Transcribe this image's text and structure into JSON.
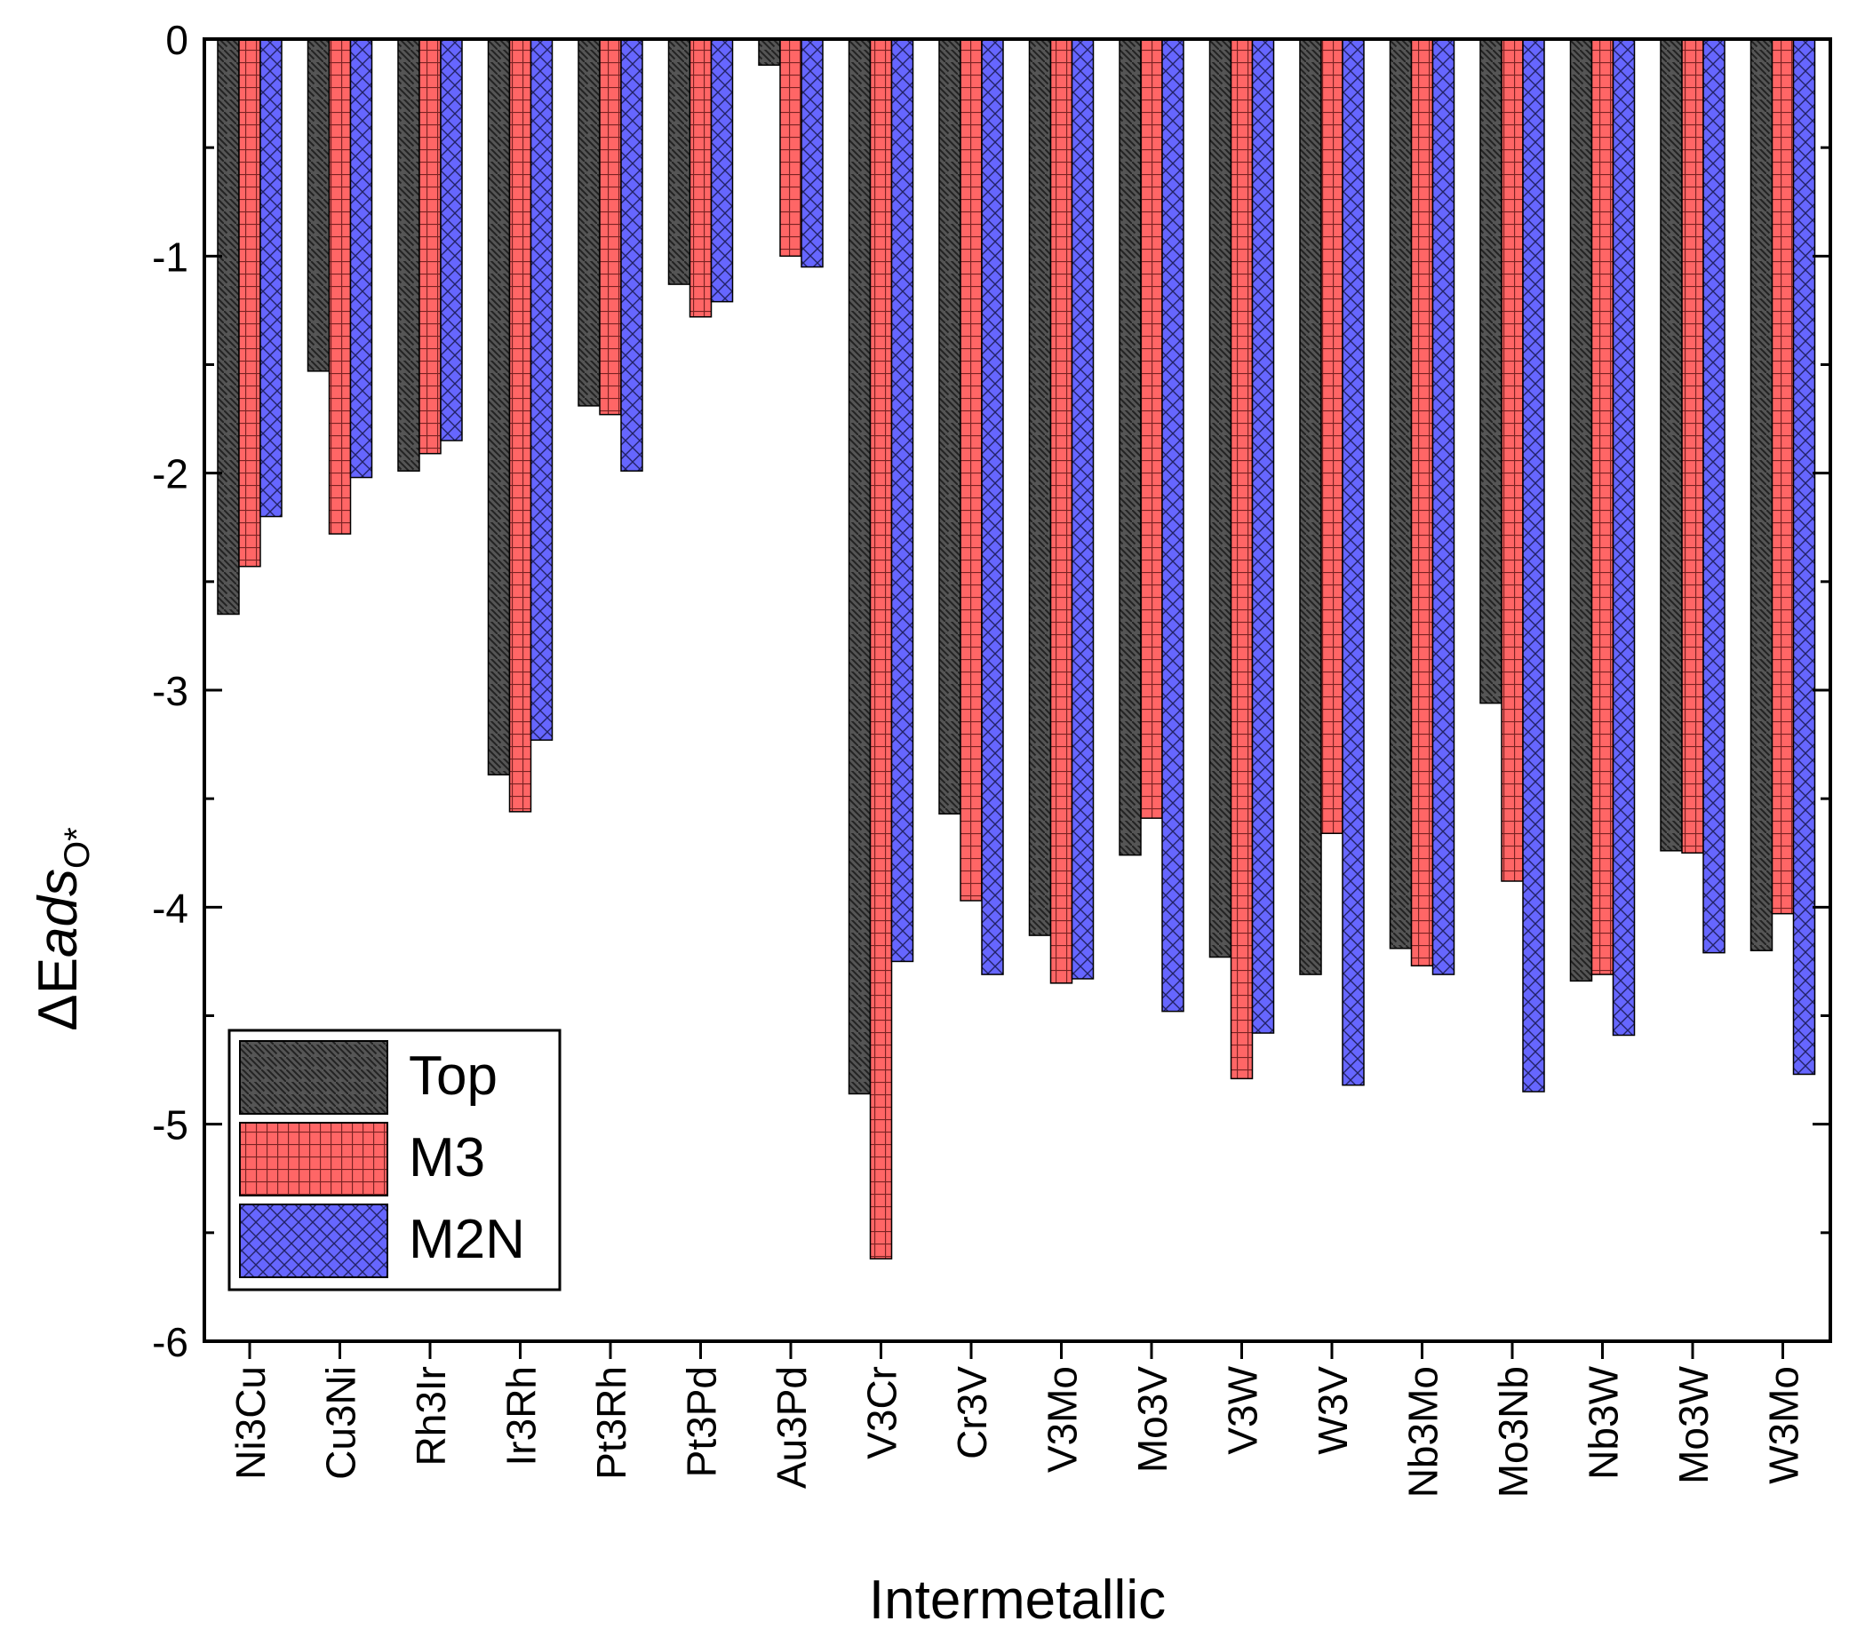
{
  "chart_data": {
    "type": "bar",
    "title": "",
    "xlabel": "Intermetallic",
    "ylabel": {
      "main": "ΔE",
      "italic": "ads",
      "subscript": "O*"
    },
    "ylim": [
      -6,
      0
    ],
    "yticks": [
      0,
      -1,
      -2,
      -3,
      -4,
      -5,
      -6
    ],
    "grid": false,
    "legend_position": "bottom-left",
    "categories": [
      "Ni3Cu",
      "Cu3Ni",
      "Rh3Ir",
      "Ir3Rh",
      "Pt3Rh",
      "Pt3Pd",
      "Au3Pd",
      "V3Cr",
      "Cr3V",
      "V3Mo",
      "Mo3V",
      "V3W",
      "W3V",
      "Nb3Mo",
      "Mo3Nb",
      "Nb3W",
      "Mo3W",
      "W3Mo"
    ],
    "series": [
      {
        "name": "Top",
        "color": "#555555",
        "pattern": "diagonal-hatch",
        "values": [
          -2.65,
          -1.53,
          -1.99,
          -3.39,
          -1.69,
          -1.13,
          -0.12,
          -4.86,
          -3.57,
          -4.13,
          -3.76,
          -4.23,
          -4.31,
          -4.19,
          -3.06,
          -4.34,
          -3.74,
          -4.2
        ]
      },
      {
        "name": "M3",
        "color": "#ff6666",
        "pattern": "grid",
        "values": [
          -2.43,
          -2.28,
          -1.91,
          -3.56,
          -1.73,
          -1.28,
          -1.0,
          -5.62,
          -3.97,
          -4.35,
          -3.59,
          -4.79,
          -3.66,
          -4.27,
          -3.88,
          -4.31,
          -3.75,
          -4.03
        ]
      },
      {
        "name": "M2N",
        "color": "#6666ff",
        "pattern": "crosshatch",
        "values": [
          -2.2,
          -2.02,
          -1.85,
          -3.23,
          -1.99,
          -1.21,
          -1.05,
          -4.25,
          -4.31,
          -4.33,
          -4.48,
          -4.58,
          -4.82,
          -4.31,
          -4.85,
          -4.59,
          -4.21,
          -4.77
        ]
      }
    ]
  }
}
